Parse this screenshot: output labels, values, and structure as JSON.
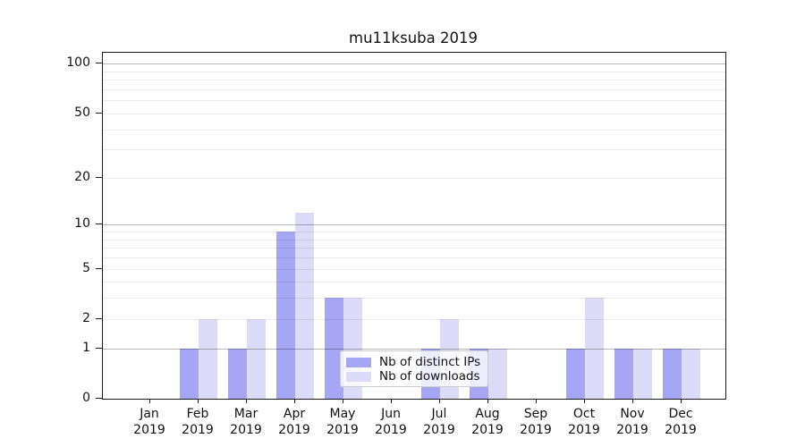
{
  "title": "mu11ksuba 2019",
  "chart_data": {
    "type": "bar",
    "title": "mu11ksuba 2019",
    "categories": [
      "Jan",
      "Feb",
      "Mar",
      "Apr",
      "May",
      "Jun",
      "Jul",
      "Aug",
      "Sep",
      "Oct",
      "Nov",
      "Dec"
    ],
    "year_label": "2019",
    "series": [
      {
        "name": "Nb of distinct IPs",
        "color": "#a6a6f4",
        "values": [
          0,
          1,
          1,
          9,
          3,
          0,
          1,
          1,
          0,
          1,
          1,
          1
        ]
      },
      {
        "name": "Nb of downloads",
        "color": "#dcdcf8",
        "values": [
          0,
          2,
          2,
          12,
          3,
          0,
          2,
          1,
          0,
          3,
          1,
          1
        ]
      }
    ],
    "yscale": "log1p",
    "ylim": [
      0,
      116
    ],
    "yticks": [
      0,
      1,
      2,
      5,
      10,
      20,
      50,
      100
    ],
    "major_gridlines": [
      1,
      10,
      100
    ],
    "minor_gridlines": [
      2,
      3,
      4,
      5,
      6,
      7,
      8,
      9,
      20,
      30,
      40,
      50,
      60,
      70,
      80,
      90
    ],
    "grid": "on",
    "legend_position": "lower-center-inside",
    "bars_per_month": 2
  }
}
